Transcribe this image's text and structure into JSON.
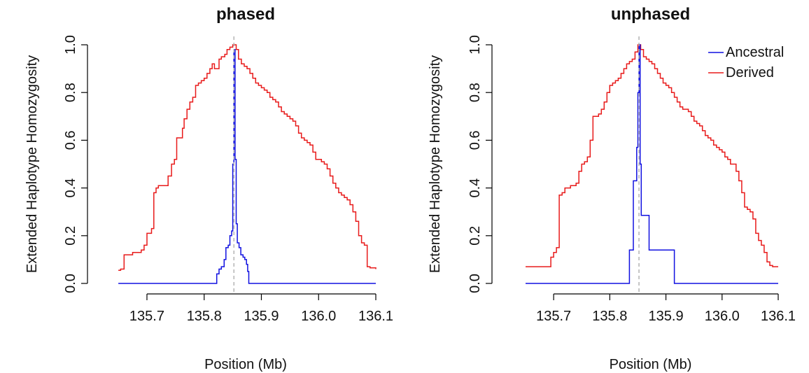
{
  "colors": {
    "ancestral": "#1010e0",
    "derived": "#e81a1a",
    "marker": "#b8b8b8"
  },
  "legend": {
    "items": [
      {
        "label": "Ancestral",
        "color": "#1010e0"
      },
      {
        "label": "Derived",
        "color": "#e81a1a"
      }
    ],
    "placement": "top-right of second panel"
  },
  "chart_data": [
    {
      "type": "line",
      "step": true,
      "title": "phased",
      "xlabel": "Position (Mb)",
      "ylabel": "Extended Haplotype Homozygosity",
      "xlim": [
        135.645,
        136.1
      ],
      "ylim": [
        0.0,
        1.0
      ],
      "xticks": [
        135.7,
        135.8,
        135.9,
        136.0,
        136.1
      ],
      "xtick_labels": [
        "135.7",
        "135.8",
        "135.9",
        "136.0",
        "136.1"
      ],
      "yticks": [
        0.0,
        0.2,
        0.4,
        0.6,
        0.8,
        1.0
      ],
      "ytick_labels": [
        "0.0",
        "0.2",
        "0.4",
        "0.6",
        "0.8",
        "1.0"
      ],
      "marker_position": 135.852,
      "series": [
        {
          "name": "Ancestral",
          "x": [
            135.65,
            135.822,
            135.826,
            135.83,
            135.835,
            135.838,
            135.842,
            135.845,
            135.848,
            135.85,
            135.852,
            135.854,
            135.856,
            135.858,
            135.861,
            135.864,
            135.868,
            135.871,
            135.874,
            135.876,
            135.878,
            136.1
          ],
          "y": [
            0.0,
            0.04,
            0.06,
            0.07,
            0.1,
            0.15,
            0.16,
            0.2,
            0.22,
            0.5,
            0.98,
            0.52,
            0.25,
            0.17,
            0.15,
            0.12,
            0.11,
            0.1,
            0.08,
            0.05,
            0.0,
            0.0
          ]
        },
        {
          "name": "Derived",
          "x": [
            135.65,
            135.654,
            135.66,
            135.675,
            135.69,
            135.695,
            135.7,
            135.708,
            135.712,
            135.716,
            135.72,
            135.73,
            135.737,
            135.743,
            135.748,
            135.752,
            135.757,
            135.762,
            135.765,
            135.77,
            135.775,
            135.78,
            135.785,
            135.79,
            135.795,
            135.8,
            135.805,
            135.81,
            135.814,
            135.818,
            135.822,
            135.826,
            135.83,
            135.836,
            135.84,
            135.845,
            135.85,
            135.856,
            135.86,
            135.865,
            135.87,
            135.875,
            135.88,
            135.885,
            135.89,
            135.895,
            135.9,
            135.905,
            135.91,
            135.915,
            135.92,
            135.925,
            135.93,
            135.935,
            135.94,
            135.945,
            135.95,
            135.955,
            135.96,
            135.965,
            135.97,
            135.975,
            135.98,
            135.985,
            135.99,
            135.995,
            136.0,
            136.005,
            136.01,
            136.015,
            136.02,
            136.025,
            136.03,
            136.035,
            136.04,
            136.045,
            136.05,
            136.055,
            136.06,
            136.065,
            136.07,
            136.075,
            136.08,
            136.085,
            136.09,
            136.1
          ],
          "y": [
            0.055,
            0.06,
            0.12,
            0.13,
            0.14,
            0.16,
            0.21,
            0.23,
            0.38,
            0.4,
            0.41,
            0.41,
            0.45,
            0.5,
            0.52,
            0.61,
            0.61,
            0.65,
            0.69,
            0.73,
            0.76,
            0.78,
            0.83,
            0.84,
            0.85,
            0.86,
            0.88,
            0.9,
            0.92,
            0.9,
            0.9,
            0.94,
            0.95,
            0.96,
            0.98,
            0.99,
            1.0,
            0.98,
            0.94,
            0.92,
            0.91,
            0.9,
            0.88,
            0.86,
            0.84,
            0.83,
            0.82,
            0.81,
            0.8,
            0.78,
            0.77,
            0.76,
            0.74,
            0.72,
            0.71,
            0.7,
            0.69,
            0.68,
            0.66,
            0.63,
            0.61,
            0.6,
            0.59,
            0.58,
            0.55,
            0.52,
            0.52,
            0.51,
            0.5,
            0.48,
            0.45,
            0.42,
            0.4,
            0.38,
            0.37,
            0.36,
            0.35,
            0.33,
            0.3,
            0.26,
            0.2,
            0.17,
            0.16,
            0.07,
            0.065,
            0.06
          ]
        }
      ]
    },
    {
      "type": "line",
      "step": true,
      "title": "unphased",
      "xlabel": "Position (Mb)",
      "ylabel": "Extended Haplotype Homozygosity",
      "xlim": [
        135.645,
        136.1
      ],
      "ylim": [
        0.0,
        1.0
      ],
      "xticks": [
        135.7,
        135.8,
        135.9,
        136.0,
        136.1
      ],
      "xtick_labels": [
        "135.7",
        "135.8",
        "135.9",
        "136.0",
        "136.1"
      ],
      "yticks": [
        0.0,
        0.2,
        0.4,
        0.6,
        0.8,
        1.0
      ],
      "ytick_labels": [
        "0.0",
        "0.2",
        "0.4",
        "0.6",
        "0.8",
        "1.0"
      ],
      "marker_position": 135.852,
      "series": [
        {
          "name": "Ancestral",
          "x": [
            135.65,
            135.835,
            135.842,
            135.848,
            135.85,
            135.852,
            135.854,
            135.856,
            135.87,
            135.915,
            136.1
          ],
          "y": [
            0.0,
            0.14,
            0.43,
            0.57,
            0.8,
            1.0,
            0.5,
            0.285,
            0.14,
            0.0,
            0.0
          ]
        },
        {
          "name": "Derived",
          "x": [
            135.65,
            135.695,
            135.7,
            135.705,
            135.71,
            135.715,
            135.72,
            135.73,
            135.74,
            135.745,
            135.75,
            135.755,
            135.76,
            135.765,
            135.77,
            135.78,
            135.785,
            135.79,
            135.795,
            135.8,
            135.805,
            135.81,
            135.815,
            135.82,
            135.825,
            135.83,
            135.835,
            135.84,
            135.845,
            135.85,
            135.855,
            135.86,
            135.865,
            135.87,
            135.875,
            135.88,
            135.885,
            135.89,
            135.895,
            135.9,
            135.905,
            135.91,
            135.915,
            135.92,
            135.925,
            135.93,
            135.935,
            135.94,
            135.945,
            135.95,
            135.955,
            135.96,
            135.965,
            135.97,
            135.975,
            135.98,
            135.985,
            135.99,
            135.995,
            136.0,
            136.005,
            136.01,
            136.015,
            136.02,
            136.025,
            136.03,
            136.035,
            136.04,
            136.045,
            136.05,
            136.055,
            136.06,
            136.065,
            136.07,
            136.075,
            136.08,
            136.085,
            136.09,
            136.1
          ],
          "y": [
            0.07,
            0.11,
            0.13,
            0.15,
            0.37,
            0.38,
            0.4,
            0.41,
            0.42,
            0.47,
            0.5,
            0.51,
            0.53,
            0.6,
            0.7,
            0.71,
            0.73,
            0.76,
            0.8,
            0.83,
            0.84,
            0.85,
            0.86,
            0.88,
            0.9,
            0.92,
            0.93,
            0.94,
            0.97,
            1.0,
            0.98,
            0.95,
            0.94,
            0.93,
            0.92,
            0.9,
            0.88,
            0.86,
            0.84,
            0.83,
            0.82,
            0.8,
            0.78,
            0.76,
            0.74,
            0.73,
            0.73,
            0.72,
            0.7,
            0.68,
            0.67,
            0.66,
            0.64,
            0.62,
            0.61,
            0.6,
            0.58,
            0.57,
            0.56,
            0.55,
            0.53,
            0.52,
            0.5,
            0.5,
            0.47,
            0.43,
            0.38,
            0.32,
            0.31,
            0.3,
            0.27,
            0.21,
            0.18,
            0.16,
            0.13,
            0.09,
            0.075,
            0.07,
            0.07
          ]
        }
      ]
    }
  ]
}
